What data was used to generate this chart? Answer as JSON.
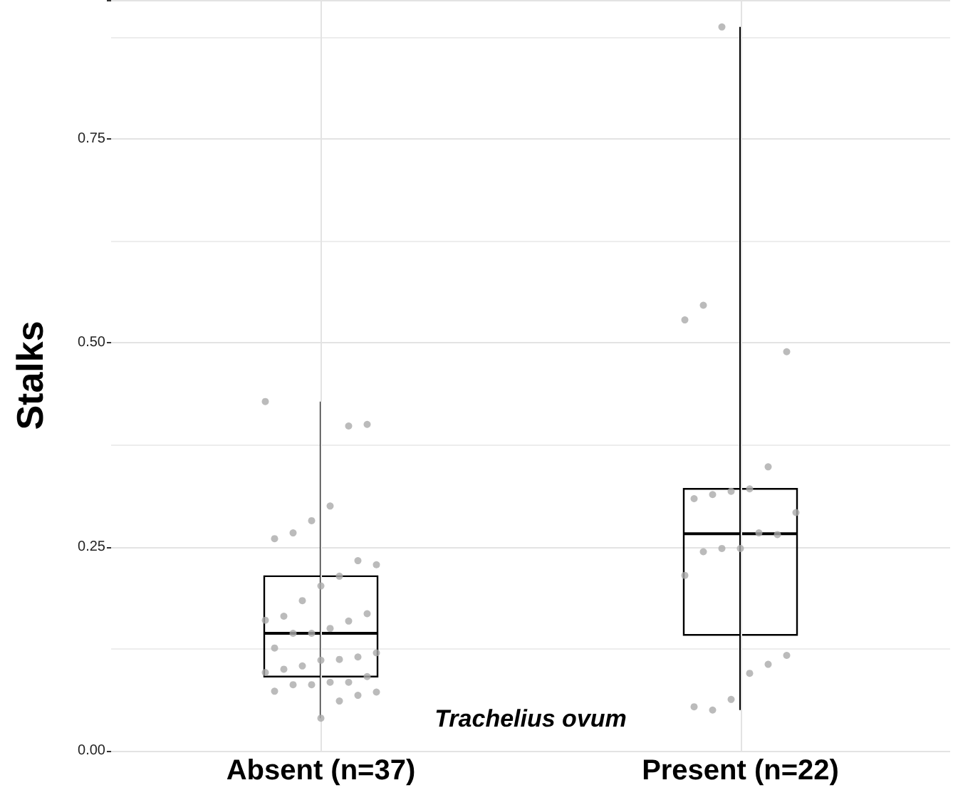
{
  "chart_data": {
    "type": "box",
    "ylabel": "Stalks",
    "xlabel": "Trachelius ovum",
    "categories": [
      "Absent (n=37)",
      "Present (n=22)"
    ],
    "ylim": [
      0,
      0.92
    ],
    "yticks": [
      {
        "value": 0,
        "label": "0.00"
      },
      {
        "value": 0.25,
        "label": "0.25"
      },
      {
        "value": 0.5,
        "label": "0.50"
      },
      {
        "value": 0.75,
        "label": "0.75"
      }
    ],
    "grid": true,
    "series": [
      {
        "color": "#000000",
        "boxes": [
          {
            "low": 0.04,
            "q1": 0.091,
            "median": 0.144,
            "q3": 0.214,
            "high": 0.428
          },
          {
            "low": 0.05,
            "q1": 0.142,
            "median": 0.266,
            "q3": 0.321,
            "high": 0.887
          }
        ]
      },
      {
        "type": "scatter",
        "color": "#aaaaaa",
        "marker": "circle",
        "x": [
          "Absent (n=37)",
          "Absent (n=37)",
          "Absent (n=37)",
          "Absent (n=37)",
          "Absent (n=37)",
          "Absent (n=37)",
          "Absent (n=37)",
          "Absent (n=37)",
          "Absent (n=37)",
          "Absent (n=37)",
          "Absent (n=37)",
          "Absent (n=37)",
          "Absent (n=37)",
          "Absent (n=37)",
          "Absent (n=37)",
          "Absent (n=37)",
          "Absent (n=37)",
          "Absent (n=37)",
          "Absent (n=37)",
          "Absent (n=37)",
          "Absent (n=37)",
          "Absent (n=37)",
          "Absent (n=37)",
          "Absent (n=37)",
          "Absent (n=37)",
          "Absent (n=37)",
          "Absent (n=37)",
          "Absent (n=37)",
          "Absent (n=37)",
          "Absent (n=37)",
          "Absent (n=37)",
          "Absent (n=37)",
          "Absent (n=37)",
          "Absent (n=37)",
          "Absent (n=37)",
          "Absent (n=37)",
          "Absent (n=37)",
          "Present (n=22)",
          "Present (n=22)",
          "Present (n=22)",
          "Present (n=22)",
          "Present (n=22)",
          "Present (n=22)",
          "Present (n=22)",
          "Present (n=22)",
          "Present (n=22)",
          "Present (n=22)",
          "Present (n=22)",
          "Present (n=22)",
          "Present (n=22)",
          "Present (n=22)",
          "Present (n=22)",
          "Present (n=22)",
          "Present (n=22)",
          "Present (n=22)",
          "Present (n=22)",
          "Present (n=22)",
          "Present (n=22)",
          "Present (n=22)"
        ],
        "values": [
          0.428,
          0.4,
          0.398,
          0.3,
          0.282,
          0.267,
          0.26,
          0.228,
          0.233,
          0.214,
          0.202,
          0.184,
          0.165,
          0.16,
          0.168,
          0.159,
          0.15,
          0.144,
          0.144,
          0.126,
          0.12,
          0.115,
          0.112,
          0.111,
          0.104,
          0.1,
          0.096,
          0.091,
          0.084,
          0.084,
          0.081,
          0.081,
          0.073,
          0.072,
          0.068,
          0.061,
          0.04,
          0.887,
          0.546,
          0.528,
          0.489,
          0.348,
          0.321,
          0.318,
          0.314,
          0.309,
          0.292,
          0.265,
          0.267,
          0.248,
          0.248,
          0.244,
          0.215,
          0.117,
          0.106,
          0.095,
          0.063,
          0.05,
          0.054
        ]
      }
    ]
  }
}
